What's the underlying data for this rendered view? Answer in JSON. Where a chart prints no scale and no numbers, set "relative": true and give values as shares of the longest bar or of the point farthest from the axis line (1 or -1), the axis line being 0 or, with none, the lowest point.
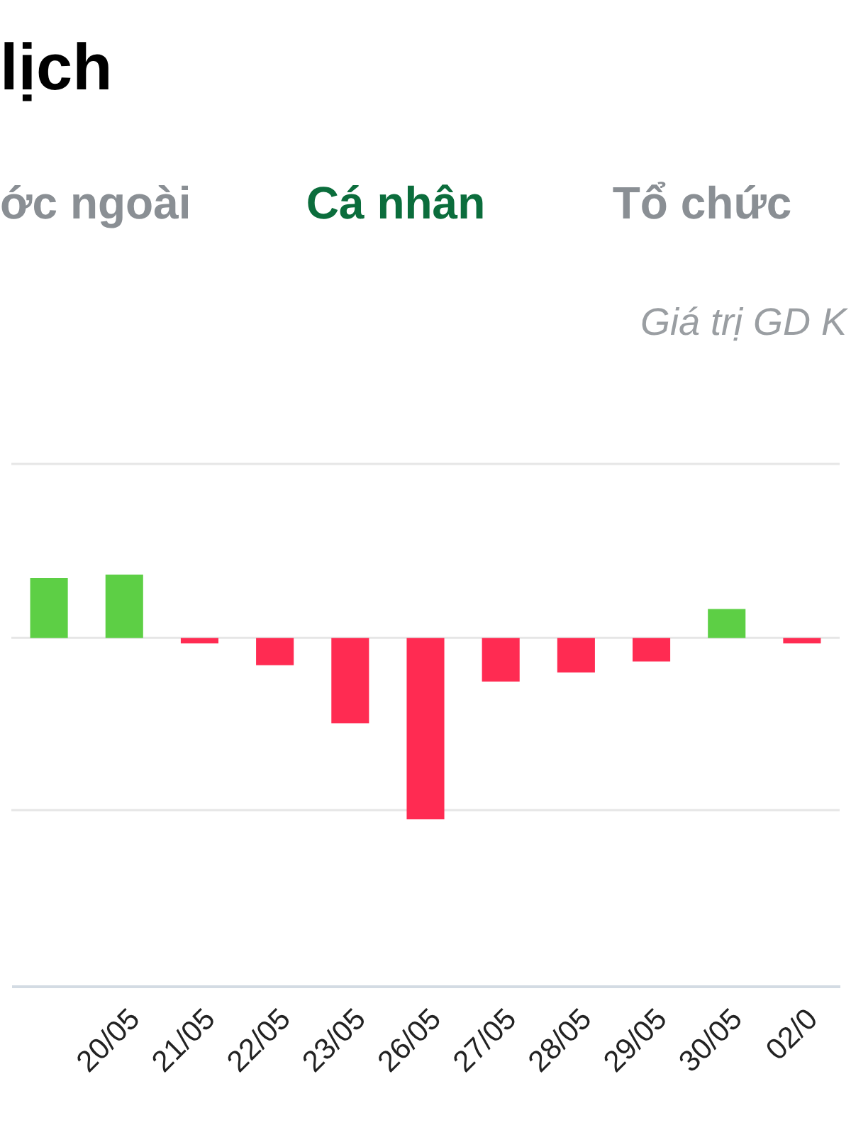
{
  "chart_data": {
    "type": "bar",
    "title": "lịch",
    "annotations": [
      "ớc ngoài",
      "Cá nhân",
      "Tổ chức",
      "Giá trị GD K"
    ],
    "categories": [
      null,
      "20/05",
      "21/05",
      "22/05",
      "23/05",
      "26/05",
      "27/05",
      "28/05",
      "29/05",
      "30/05",
      "02/0"
    ],
    "values": [
      0.33,
      0.35,
      -0.03,
      -0.15,
      -0.47,
      -1,
      -0.24,
      -0.19,
      -0.13,
      0.16,
      -0.03
    ],
    "colors": [
      "#5dcf45",
      "#5dcf45",
      "#ff2b52",
      "#ff2b52",
      "#ff2b52",
      "#ff2b52",
      "#ff2b52",
      "#ff2b52",
      "#ff2b52",
      "#5dcf45",
      "#ff2b52"
    ],
    "ref_lines": [
      {
        "axis": "y",
        "value": 0.96,
        "color": "#e6e6e6"
      },
      {
        "axis": "y",
        "value": 0,
        "color": "#e6e6e6"
      },
      {
        "axis": "y",
        "value": -0.95,
        "color": "#e6e6e6"
      }
    ],
    "relative": true,
    "tick_labels": "x"
  }
}
